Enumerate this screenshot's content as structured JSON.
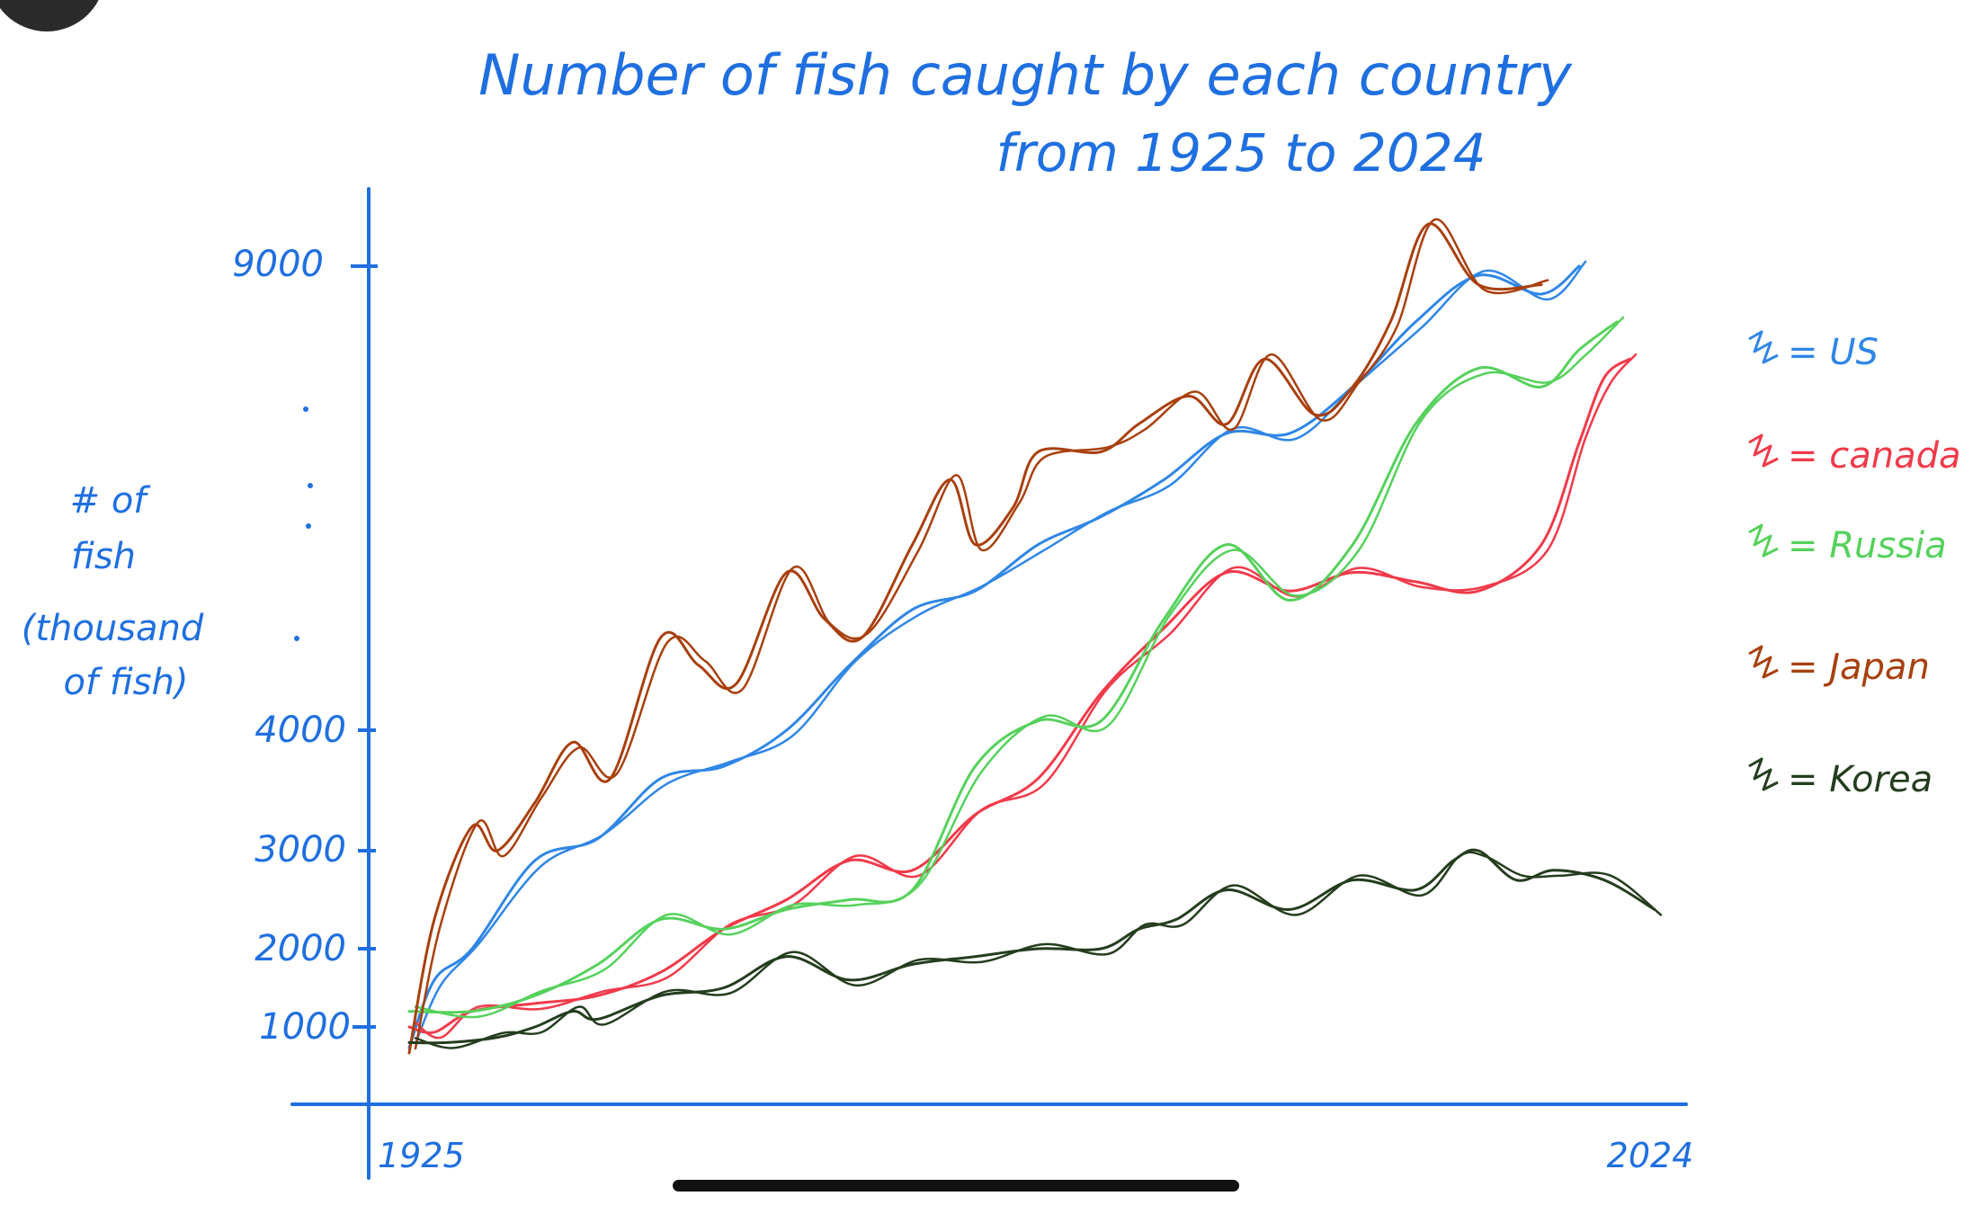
{
  "colors": {
    "axis": "#1f6fe0",
    "title": "#1f6fe0",
    "us": "#2f86e6",
    "canada": "#f03a4a",
    "russia": "#56d15c",
    "japan": "#a8400e",
    "korea": "#243d1e",
    "home_indicator": "#111111",
    "corner_circle": "#2b2b2b"
  },
  "chart_data": {
    "type": "line",
    "title": "Number of fish caught by each country",
    "subtitle": "from 1925 to 2024",
    "ylabel_lines": [
      "# of",
      "fish",
      "(thousand",
      "of fish)"
    ],
    "x_tick_labels": [
      "1925",
      "2024"
    ],
    "y_tick_labels": [
      "9000",
      "4000",
      "3000",
      "2000",
      "1000"
    ],
    "xlim": [
      1925,
      2024
    ],
    "y_ticks": [
      {
        "label": "1000",
        "value": 1000
      },
      {
        "label": "2000",
        "value": 2000
      },
      {
        "label": "3000",
        "value": 3000
      },
      {
        "label": "4000",
        "value": 4000
      },
      {
        "label": "9000",
        "value": 9000
      }
    ],
    "legend_placement": "right",
    "legend": [
      {
        "key": "us",
        "label": "= US"
      },
      {
        "key": "canada",
        "label": "= canada"
      },
      {
        "key": "russia",
        "label": "= Russia"
      },
      {
        "key": "japan",
        "label": "= Japan"
      },
      {
        "key": "korea",
        "label": "= Korea"
      }
    ],
    "series": [
      {
        "key": "us",
        "name": "US",
        "x": [
          1925,
          1927,
          1930,
          1935,
          1940,
          1945,
          1950,
          1955,
          1960,
          1965,
          1970,
          1975,
          1980,
          1985,
          1990,
          1995,
          2000,
          2005,
          2010,
          2015,
          2018
        ],
        "values": [
          600,
          1600,
          2000,
          2900,
          3100,
          3600,
          3700,
          4000,
          4700,
          5300,
          5500,
          6000,
          6300,
          6700,
          7200,
          7200,
          7700,
          8400,
          8900,
          8700,
          9000
        ]
      },
      {
        "key": "canada",
        "name": "Canada",
        "x": [
          1925,
          1927,
          1930,
          1935,
          1940,
          1945,
          1950,
          1955,
          1960,
          1965,
          1970,
          1975,
          1980,
          1985,
          1990,
          1995,
          2000,
          2005,
          2010,
          2015,
          2018,
          2020,
          2022
        ],
        "values": [
          1000,
          900,
          1200,
          1300,
          1400,
          1700,
          2200,
          2500,
          2900,
          2800,
          3300,
          3600,
          4400,
          5100,
          5700,
          5500,
          5700,
          5600,
          5500,
          6000,
          7100,
          7800,
          8000
        ]
      },
      {
        "key": "russia",
        "name": "Russia",
        "x": [
          1925,
          1930,
          1935,
          1940,
          1945,
          1950,
          1955,
          1960,
          1965,
          1970,
          1975,
          1980,
          1985,
          1990,
          1995,
          2000,
          2005,
          2010,
          2015,
          2018,
          2021
        ],
        "values": [
          1200,
          1200,
          1400,
          1800,
          2300,
          2200,
          2400,
          2500,
          2600,
          3700,
          4100,
          4100,
          5200,
          6000,
          5400,
          6000,
          7300,
          7900,
          7700,
          8100,
          8400
        ]
      },
      {
        "key": "japan",
        "name": "Japan",
        "x": [
          1925,
          1927,
          1930,
          1932,
          1935,
          1938,
          1941,
          1945,
          1948,
          1951,
          1955,
          1958,
          1961,
          1965,
          1968,
          1970,
          1973,
          1975,
          1980,
          1983,
          1987,
          1990,
          1993,
          1997,
          2000,
          2003,
          2006,
          2010,
          2015
        ],
        "values": [
          500,
          2300,
          3200,
          3000,
          3400,
          3900,
          3600,
          5000,
          4700,
          4500,
          5700,
          5200,
          5000,
          6000,
          6700,
          6000,
          6400,
          7000,
          7000,
          7300,
          7600,
          7300,
          8000,
          7400,
          7700,
          8400,
          9500,
          8800,
          8800
        ]
      },
      {
        "key": "korea",
        "name": "Korea",
        "x": [
          1925,
          1928,
          1932,
          1935,
          1938,
          1940,
          1945,
          1950,
          1955,
          1960,
          1965,
          1970,
          1975,
          1980,
          1983,
          1986,
          1990,
          1995,
          2000,
          2005,
          2008,
          2010,
          2013,
          2016,
          2020,
          2024
        ],
        "values": [
          700,
          700,
          800,
          1000,
          1200,
          1100,
          1400,
          1500,
          1900,
          1600,
          1800,
          1900,
          2000,
          2000,
          2200,
          2300,
          2600,
          2400,
          2700,
          2600,
          2900,
          3000,
          2700,
          2800,
          2700,
          2400
        ]
      }
    ]
  }
}
